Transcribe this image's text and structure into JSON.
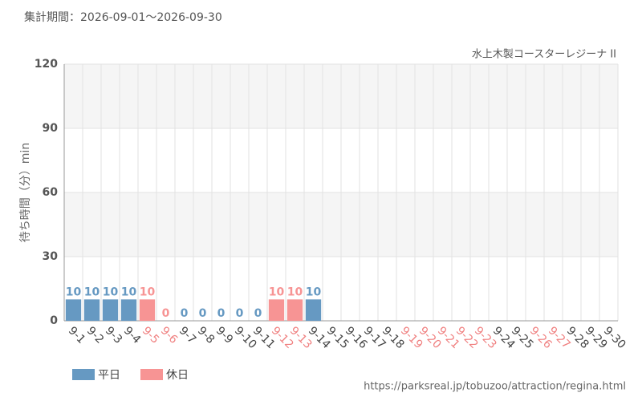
{
  "chart_data": {
    "type": "bar",
    "subtitle": "集計期間：2026-09-01〜2026-09-30",
    "title": "水上木製コースターレジーナ II",
    "y_label": "待ち時間（分）min",
    "source": "https://parksreal.jp/tobuzoo/attraction/regina.html",
    "categories": [
      "9-1",
      "9-2",
      "9-3",
      "9-4",
      "9-5",
      "9-6",
      "9-7",
      "9-8",
      "9-9",
      "9-10",
      "9-11",
      "9-12",
      "9-13",
      "9-14",
      "9-15",
      "9-16",
      "9-17",
      "9-18",
      "9-19",
      "9-20",
      "9-21",
      "9-22",
      "9-23",
      "9-24",
      "9-25",
      "9-26",
      "9-27",
      "9-28",
      "9-29",
      "9-30"
    ],
    "category_label_colors": [
      "#444",
      "#444",
      "#444",
      "#444",
      "#f08080",
      "#f08080",
      "#444",
      "#444",
      "#444",
      "#444",
      "#444",
      "#f08080",
      "#f08080",
      "#444",
      "#444",
      "#444",
      "#444",
      "#444",
      "#f08080",
      "#f08080",
      "#f08080",
      "#f08080",
      "#f08080",
      "#444",
      "#444",
      "#f08080",
      "#f08080",
      "#444",
      "#444",
      "#444"
    ],
    "series": [
      {
        "name": "平日",
        "color": "#6699c2",
        "values": [
          10,
          10,
          10,
          10,
          null,
          null,
          0,
          0,
          0,
          0,
          0,
          null,
          null,
          10,
          null,
          null,
          null,
          null,
          null,
          null,
          null,
          null,
          null,
          null,
          null,
          null,
          null,
          null,
          null,
          null
        ]
      },
      {
        "name": "休日",
        "color": "#f79494",
        "values": [
          null,
          null,
          null,
          null,
          10,
          0,
          null,
          null,
          null,
          null,
          null,
          10,
          10,
          null,
          null,
          null,
          null,
          null,
          null,
          null,
          null,
          null,
          null,
          null,
          null,
          null,
          null,
          null,
          null,
          null
        ]
      }
    ],
    "ylim": [
      0,
      120
    ],
    "yticks": [
      0,
      30,
      60,
      90,
      120
    ],
    "grid": true
  }
}
